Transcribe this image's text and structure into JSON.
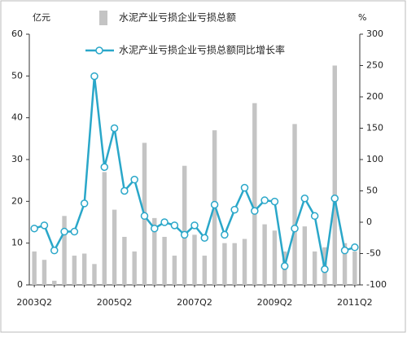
{
  "chart_data": {
    "type": "bar-line",
    "y_unit": "亿元",
    "y2_unit": "%",
    "categories": [
      "2003Q2",
      null,
      null,
      null,
      null,
      null,
      null,
      null,
      "2005Q2",
      null,
      null,
      null,
      null,
      null,
      null,
      null,
      "2007Q2",
      null,
      null,
      null,
      null,
      null,
      null,
      null,
      "2009Q2",
      null,
      null,
      null,
      null,
      null,
      null,
      null,
      "2011Q2"
    ],
    "series": [
      {
        "name": "水泥产业亏损企业亏损总额",
        "color": "#c4c4c4",
        "type": "bar",
        "values": [
          8,
          6,
          1,
          16.5,
          7,
          7.5,
          5,
          27,
          18,
          11.5,
          8,
          34,
          16,
          11.5,
          7,
          28.5,
          12,
          7,
          37,
          10,
          10,
          11,
          43.5,
          14.5,
          13,
          8,
          38.5,
          14,
          8,
          9,
          52.5,
          10,
          8
        ]
      },
      {
        "name": "水泥产业亏损企业亏损总额同比增长率",
        "color": "#2aa7c9",
        "type": "line",
        "axis": "y2",
        "values": [
          -10,
          -5,
          -45,
          -15,
          -15,
          30,
          233,
          88,
          150,
          50,
          68,
          10,
          -10,
          0,
          -5,
          -20,
          -5,
          -25,
          28,
          -20,
          20,
          55,
          18,
          35,
          33,
          -70,
          -10,
          38,
          10,
          -75,
          38,
          -45,
          -40
        ]
      }
    ],
    "ylim": [
      0,
      60
    ],
    "yticks": [
      0,
      10,
      20,
      30,
      40,
      50,
      60
    ],
    "y2lim": [
      -100,
      300
    ],
    "y2ticks": [
      -100,
      -50,
      0,
      50,
      100,
      150,
      200,
      250,
      300
    ]
  }
}
